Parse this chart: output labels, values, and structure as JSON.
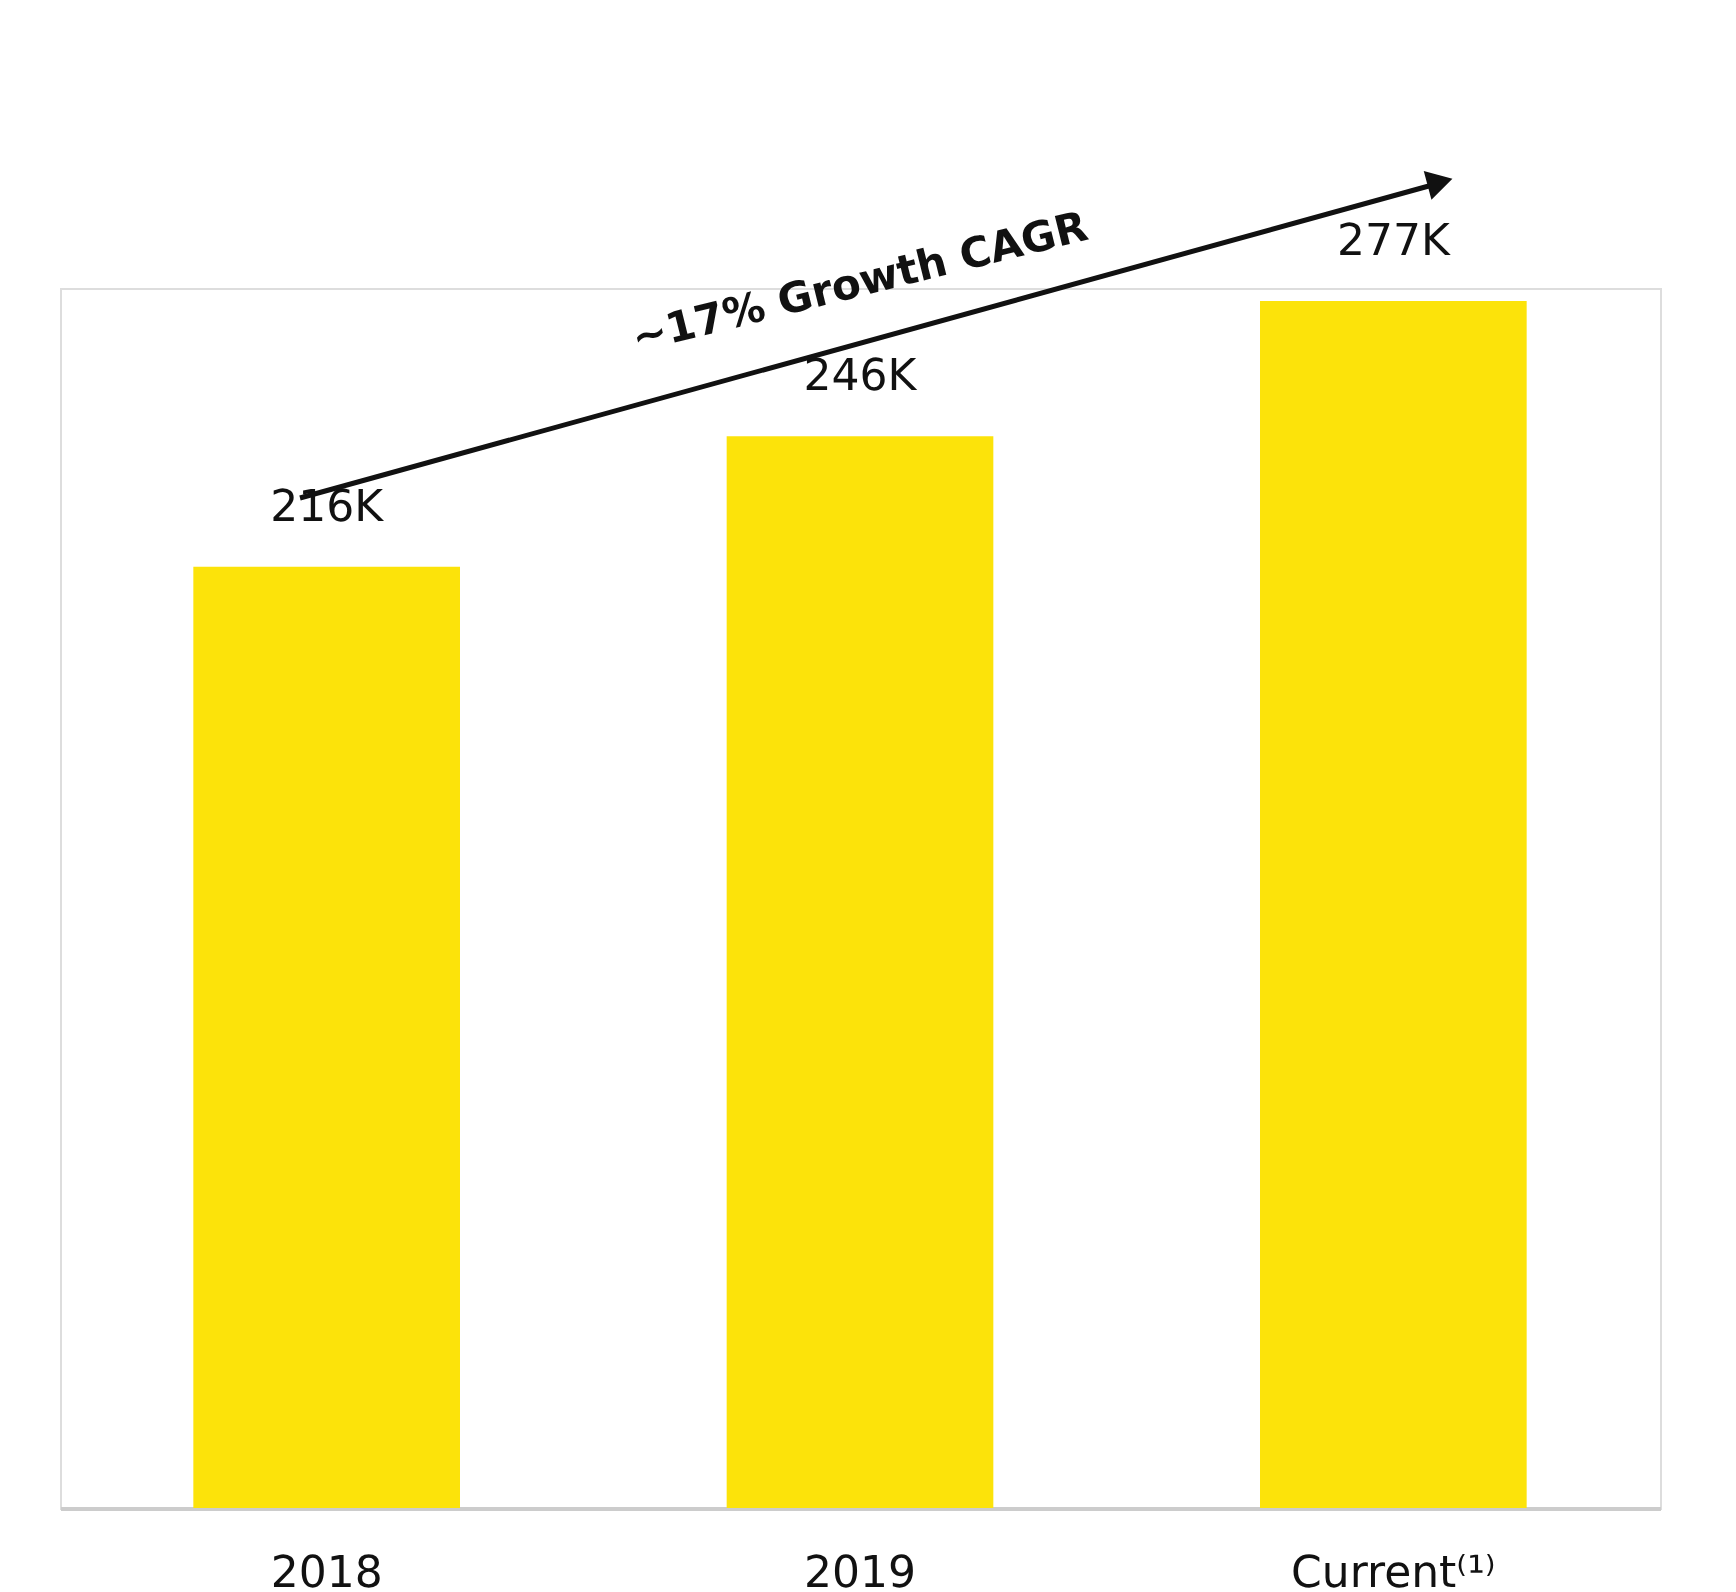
{
  "chart_data": {
    "type": "bar",
    "categories": [
      "2018",
      "2019",
      "Current⁽¹⁾"
    ],
    "values": [
      216000,
      246000,
      277000
    ],
    "value_labels": [
      "216K",
      "246K",
      "277K"
    ],
    "color": "#fce30a",
    "annotations": [
      "~17% Growth CAGR"
    ],
    "grid": false,
    "tick_labels": "x"
  }
}
